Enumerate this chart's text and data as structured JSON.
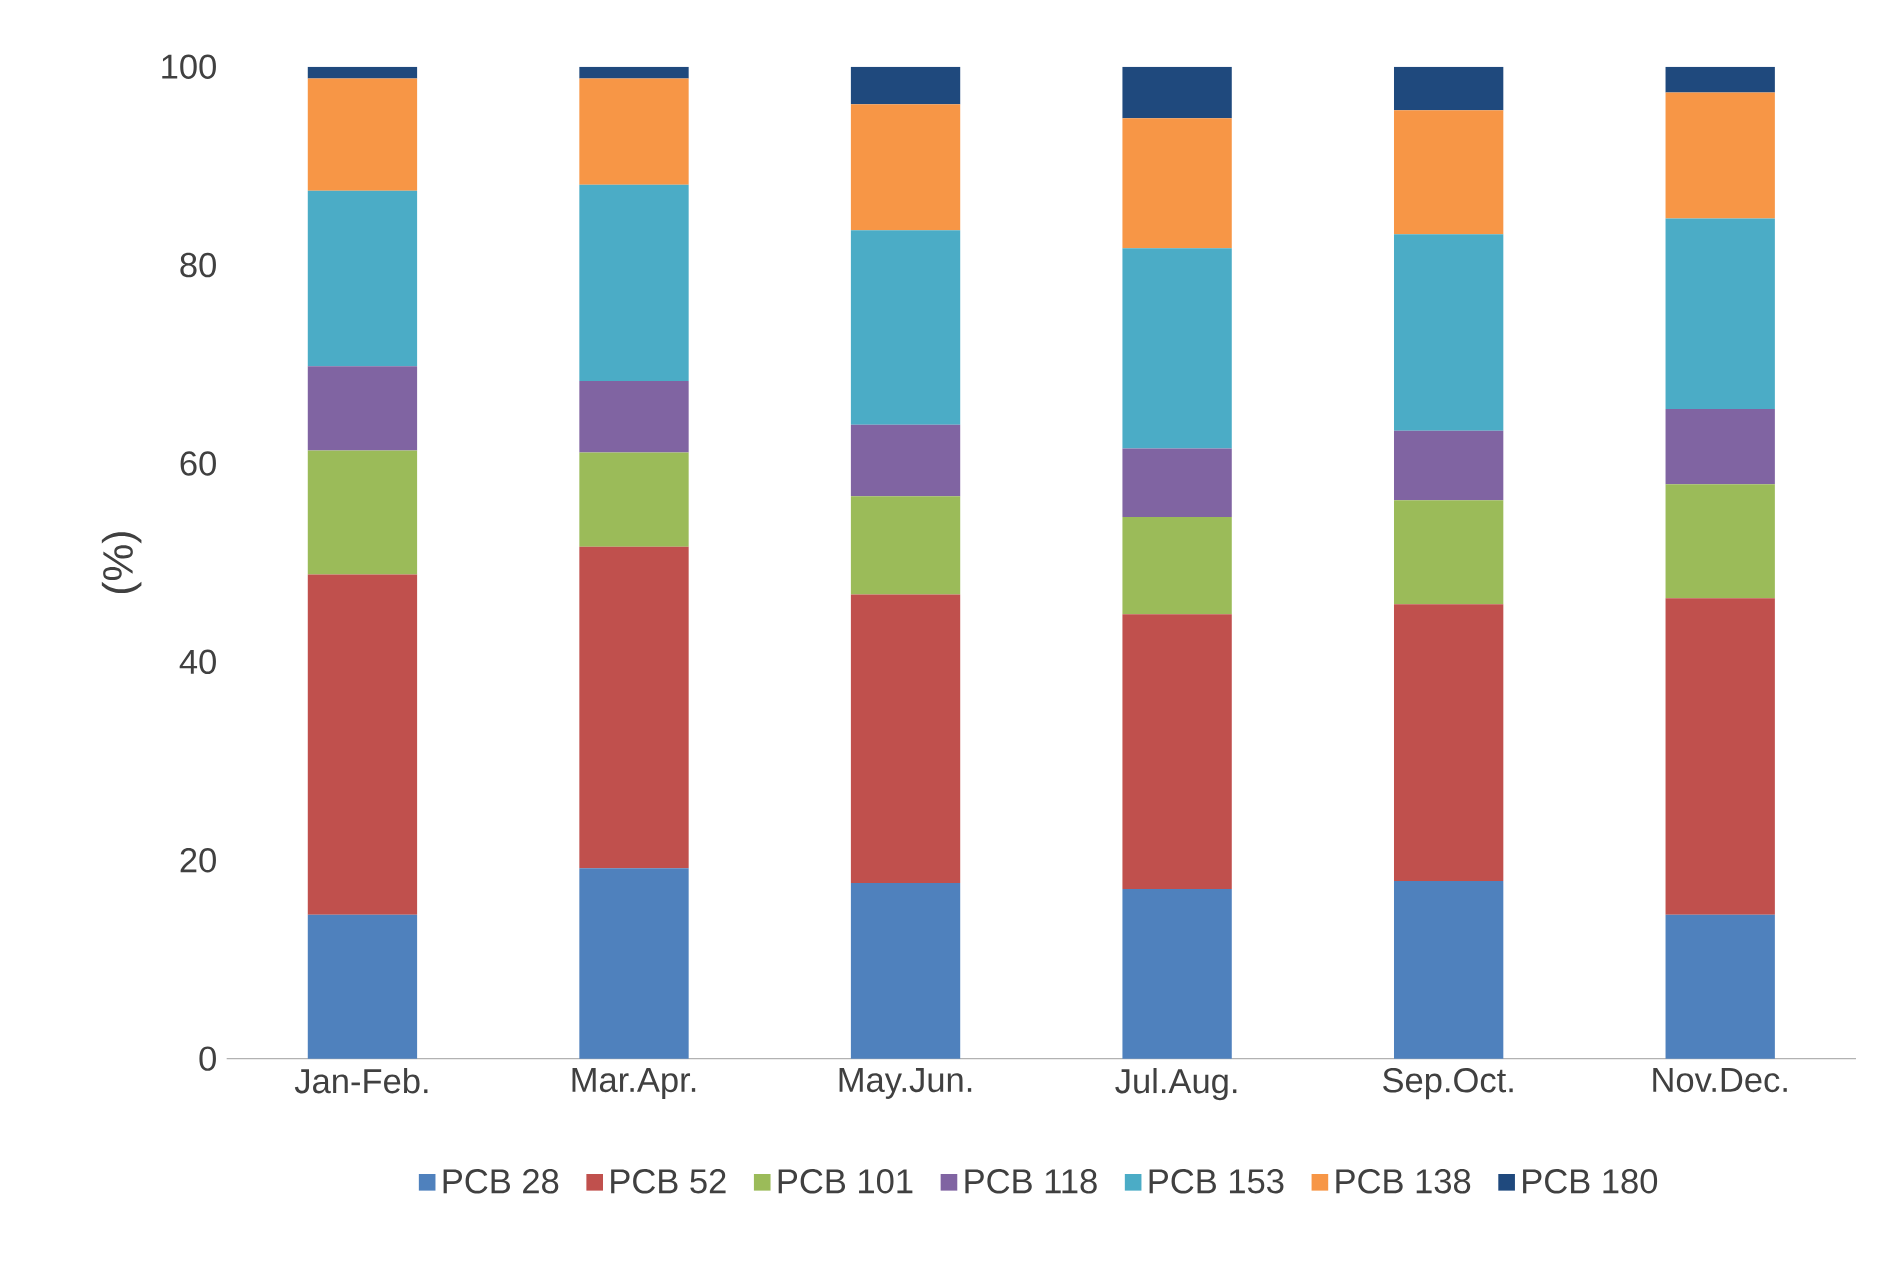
{
  "chart_data": {
    "type": "bar",
    "stacked": true,
    "ylabel": "(%)",
    "categories": [
      "Jan-Feb.",
      "Mar.Apr.",
      "May.Jun.",
      "Jul.Aug.",
      "Sep.Oct.",
      "Nov.Dec."
    ],
    "ylim": [
      0,
      100
    ],
    "yticks": [
      0,
      20,
      40,
      60,
      80,
      100
    ],
    "legend": "bottom",
    "series": [
      {
        "name": "PCB 28",
        "color": "#4f81bd",
        "values": [
          14.5,
          19.2,
          17.7,
          17.1,
          17.9,
          14.5
        ]
      },
      {
        "name": "PCB 52",
        "color": "#c0504d",
        "values": [
          34.3,
          32.4,
          29.1,
          27.7,
          27.9,
          31.9
        ]
      },
      {
        "name": "PCB 101",
        "color": "#9bbb59",
        "values": [
          12.5,
          9.5,
          9.9,
          9.8,
          10.5,
          11.5
        ]
      },
      {
        "name": "PCB 118",
        "color": "#8064a2",
        "values": [
          8.5,
          7.2,
          7.2,
          6.9,
          7.0,
          7.6
        ]
      },
      {
        "name": "PCB 153",
        "color": "#4bacc6",
        "values": [
          17.7,
          19.8,
          19.6,
          20.2,
          19.8,
          19.2
        ]
      },
      {
        "name": "PCB 138",
        "color": "#f79646",
        "values": [
          11.3,
          10.7,
          12.7,
          13.1,
          12.5,
          12.7
        ]
      },
      {
        "name": "PCB 180",
        "color": "#1f497d",
        "values": [
          1.2,
          1.2,
          3.8,
          5.2,
          4.4,
          2.6
        ]
      }
    ]
  }
}
